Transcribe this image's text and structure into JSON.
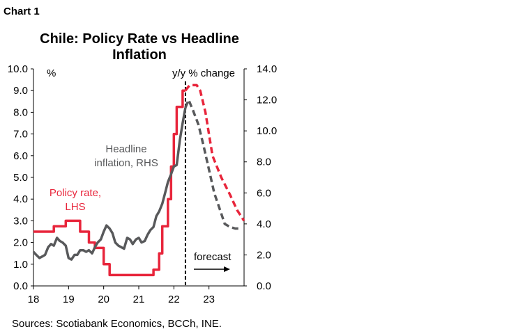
{
  "chart_number": "Chart 1",
  "source": "Sources: Scotiabank Economics, BCCh, INE.",
  "chart_data": {
    "type": "line",
    "title_line1": "Chile: Policy Rate vs Headline",
    "title_line2": "Inflation",
    "left_axis_unit": "%",
    "right_axis_unit": "y/y % change",
    "left_ticks": [
      "0.0",
      "1.0",
      "2.0",
      "3.0",
      "4.0",
      "5.0",
      "6.0",
      "7.0",
      "8.0",
      "9.0",
      "10.0"
    ],
    "right_ticks": [
      "0.0",
      "2.0",
      "4.0",
      "6.0",
      "8.0",
      "10.0",
      "12.0",
      "14.0"
    ],
    "x_ticks": [
      "18",
      "19",
      "20",
      "21",
      "22",
      "23"
    ],
    "left_ylim": [
      0,
      10
    ],
    "right_ylim": [
      0,
      14
    ],
    "xlim": [
      2018.0,
      2024.0
    ],
    "forecast_start": 2022.33,
    "forecast_label": "forecast",
    "series": [
      {
        "name": "Policy rate, LHS",
        "name_line1": "Policy rate,",
        "name_line2": "LHS",
        "axis": "left",
        "color": "#e8253b",
        "x": [
          2018.0,
          2018.58,
          2018.58,
          2018.75,
          2018.75,
          2018.92,
          2018.92,
          2019.33,
          2019.33,
          2019.58,
          2019.58,
          2019.75,
          2019.75,
          2020.0,
          2020.0,
          2020.17,
          2020.17,
          2020.25,
          2020.25,
          2021.42,
          2021.42,
          2021.58,
          2021.58,
          2021.67,
          2021.67,
          2021.83,
          2021.83,
          2021.92,
          2021.92,
          2022.0,
          2022.0,
          2022.08,
          2022.08,
          2022.25,
          2022.25,
          2022.33
        ],
        "values": [
          2.5,
          2.5,
          2.75,
          2.75,
          2.75,
          2.75,
          3.0,
          3.0,
          2.5,
          2.5,
          2.0,
          2.0,
          1.75,
          1.75,
          1.0,
          1.0,
          0.5,
          0.5,
          0.5,
          0.5,
          0.75,
          0.75,
          1.5,
          1.5,
          2.75,
          2.75,
          4.0,
          4.0,
          5.5,
          5.5,
          7.0,
          7.0,
          8.25,
          8.25,
          9.0,
          9.0
        ]
      },
      {
        "name": "Policy rate forecast",
        "axis": "left",
        "color": "#e8253b",
        "dashed": true,
        "x": [
          2022.33,
          2022.45,
          2022.55,
          2022.65,
          2022.75,
          2022.9,
          2023.1,
          2023.35,
          2023.6,
          2023.8,
          2024.0
        ],
        "values": [
          9.0,
          9.25,
          9.25,
          9.25,
          9.0,
          8.0,
          6.0,
          5.0,
          4.2,
          3.5,
          3.0
        ]
      },
      {
        "name": "Headline inflation, RHS",
        "name_line1": "Headline",
        "name_line2": "inflation, RHS",
        "axis": "right",
        "color": "#58595b",
        "x": [
          2018.0,
          2018.08,
          2018.17,
          2018.25,
          2018.33,
          2018.42,
          2018.5,
          2018.58,
          2018.67,
          2018.75,
          2018.83,
          2018.92,
          2019.0,
          2019.08,
          2019.17,
          2019.25,
          2019.33,
          2019.42,
          2019.5,
          2019.58,
          2019.67,
          2019.75,
          2019.83,
          2019.92,
          2020.0,
          2020.08,
          2020.17,
          2020.25,
          2020.33,
          2020.42,
          2020.5,
          2020.58,
          2020.67,
          2020.75,
          2020.83,
          2020.92,
          2021.0,
          2021.08,
          2021.17,
          2021.25,
          2021.33,
          2021.42,
          2021.5,
          2021.58,
          2021.67,
          2021.75,
          2021.83,
          2021.92,
          2022.0,
          2022.08,
          2022.17,
          2022.25,
          2022.33
        ],
        "values": [
          2.2,
          2.0,
          1.8,
          1.9,
          2.0,
          2.5,
          2.7,
          2.6,
          3.1,
          2.9,
          2.8,
          2.6,
          1.8,
          1.7,
          2.0,
          2.0,
          2.3,
          2.3,
          2.2,
          2.3,
          2.1,
          2.5,
          2.8,
          3.0,
          3.5,
          3.9,
          3.7,
          3.4,
          2.8,
          2.6,
          2.5,
          2.4,
          3.1,
          3.0,
          2.7,
          3.0,
          3.1,
          2.8,
          2.9,
          3.3,
          3.6,
          3.8,
          4.5,
          4.8,
          5.3,
          6.0,
          6.7,
          7.2,
          7.7,
          7.8,
          9.4,
          10.5,
          11.5
        ]
      },
      {
        "name": "Headline inflation forecast",
        "axis": "right",
        "color": "#58595b",
        "dashed": true,
        "x": [
          2022.33,
          2022.42,
          2022.55,
          2022.7,
          2022.85,
          2023.0,
          2023.15,
          2023.3,
          2023.45,
          2023.6,
          2023.75,
          2023.85
        ],
        "values": [
          11.5,
          12.0,
          11.3,
          10.4,
          9.0,
          7.5,
          6.0,
          5.0,
          4.0,
          3.8,
          3.7,
          3.7
        ]
      }
    ]
  }
}
